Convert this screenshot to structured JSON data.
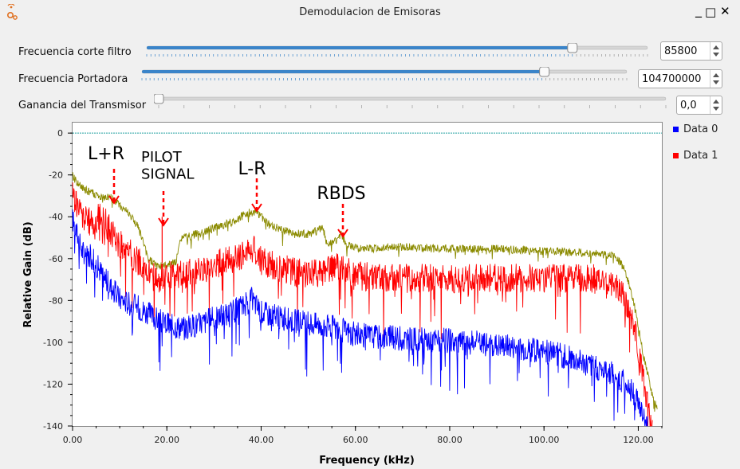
{
  "window": {
    "title": "Demodulacion de Emisoras",
    "minimize": "_",
    "maximize": "□",
    "close": "✕"
  },
  "controls": {
    "cutoff": {
      "label": "Frecuencia corte filtro",
      "value": "85800",
      "slider_fraction": 0.85
    },
    "carrier": {
      "label": "Frecuencia Portadora",
      "value": "104700000",
      "slider_fraction": 0.83
    },
    "gain": {
      "label": "Ganancia del Transmisor",
      "value": "0,0",
      "slider_fraction": 0.0
    }
  },
  "chart_data": {
    "type": "line",
    "xlabel": "Frequency (kHz)",
    "ylabel": "Relative Gain (dB)",
    "xlim": [
      0,
      125
    ],
    "ylim": [
      -140,
      5
    ],
    "x_ticks": [
      "0.00",
      "20.00",
      "40.00",
      "60.00",
      "80.00",
      "100.00",
      "120.00"
    ],
    "y_ticks": [
      "0",
      "-20",
      "-40",
      "-60",
      "-80",
      "-100",
      "-120",
      "-140"
    ],
    "reference_line_db": 0,
    "legend_position": "right",
    "series": [
      {
        "name": "Data 0",
        "color": "#0000ff",
        "points": [
          [
            0,
            -40
          ],
          [
            2,
            -55
          ],
          [
            4,
            -58
          ],
          [
            6,
            -65
          ],
          [
            8,
            -72
          ],
          [
            10,
            -78
          ],
          [
            12,
            -80
          ],
          [
            14,
            -82
          ],
          [
            16,
            -85
          ],
          [
            18,
            -88
          ],
          [
            20,
            -90
          ],
          [
            24,
            -92
          ],
          [
            28,
            -89
          ],
          [
            32,
            -86
          ],
          [
            36,
            -82
          ],
          [
            38,
            -78
          ],
          [
            40,
            -84
          ],
          [
            44,
            -87
          ],
          [
            48,
            -89
          ],
          [
            52,
            -90
          ],
          [
            56,
            -92
          ],
          [
            60,
            -95
          ],
          [
            70,
            -97
          ],
          [
            80,
            -98
          ],
          [
            90,
            -100
          ],
          [
            100,
            -103
          ],
          [
            105,
            -106
          ],
          [
            110,
            -110
          ],
          [
            115,
            -114
          ],
          [
            118,
            -120
          ],
          [
            120,
            -128
          ],
          [
            122,
            -140
          ]
        ]
      },
      {
        "name": "Data 1",
        "color": "#ff0000",
        "points": [
          [
            0,
            -28
          ],
          [
            2,
            -38
          ],
          [
            4,
            -42
          ],
          [
            6,
            -38
          ],
          [
            8,
            -45
          ],
          [
            10,
            -52
          ],
          [
            12,
            -55
          ],
          [
            14,
            -60
          ],
          [
            16,
            -66
          ],
          [
            18,
            -68
          ],
          [
            20,
            -67
          ],
          [
            24,
            -66
          ],
          [
            28,
            -64
          ],
          [
            32,
            -60
          ],
          [
            36,
            -57
          ],
          [
            38,
            -53
          ],
          [
            40,
            -60
          ],
          [
            44,
            -63
          ],
          [
            48,
            -65
          ],
          [
            52,
            -66
          ],
          [
            56,
            -62
          ],
          [
            60,
            -67
          ],
          [
            70,
            -68
          ],
          [
            80,
            -68
          ],
          [
            90,
            -68
          ],
          [
            100,
            -68
          ],
          [
            110,
            -68
          ],
          [
            115,
            -70
          ],
          [
            117,
            -76
          ],
          [
            119,
            -90
          ],
          [
            121,
            -115
          ],
          [
            123,
            -140
          ]
        ]
      },
      {
        "name": "",
        "color": "#8b8b00",
        "points": [
          [
            0,
            -20
          ],
          [
            2,
            -26
          ],
          [
            4,
            -28
          ],
          [
            6,
            -31
          ],
          [
            8,
            -30
          ],
          [
            10,
            -34
          ],
          [
            12,
            -38
          ],
          [
            14,
            -45
          ],
          [
            15,
            -52
          ],
          [
            16,
            -60
          ],
          [
            18,
            -63
          ],
          [
            20,
            -63
          ],
          [
            22,
            -61
          ],
          [
            23,
            -50
          ],
          [
            26,
            -48
          ],
          [
            30,
            -45
          ],
          [
            34,
            -42
          ],
          [
            37,
            -38
          ],
          [
            39,
            -37
          ],
          [
            42,
            -44
          ],
          [
            46,
            -47
          ],
          [
            50,
            -48
          ],
          [
            53,
            -45
          ],
          [
            54,
            -52
          ],
          [
            56,
            -51
          ],
          [
            57,
            -48
          ],
          [
            58,
            -53
          ],
          [
            62,
            -55
          ],
          [
            70,
            -54
          ],
          [
            80,
            -55
          ],
          [
            90,
            -55
          ],
          [
            100,
            -56
          ],
          [
            110,
            -57
          ],
          [
            115,
            -58
          ],
          [
            117,
            -64
          ],
          [
            119,
            -80
          ],
          [
            121,
            -105
          ],
          [
            123,
            -125
          ],
          [
            124,
            -130
          ]
        ]
      }
    ],
    "annotations": [
      {
        "text": "L+R",
        "x": 8,
        "y": -20
      },
      {
        "text": "PILOT\nSIGNAL",
        "x": 19,
        "y": -40
      },
      {
        "text": "L-R",
        "x": 38,
        "y": -33
      },
      {
        "text": "RBDS",
        "x": 57,
        "y": -44
      }
    ]
  }
}
